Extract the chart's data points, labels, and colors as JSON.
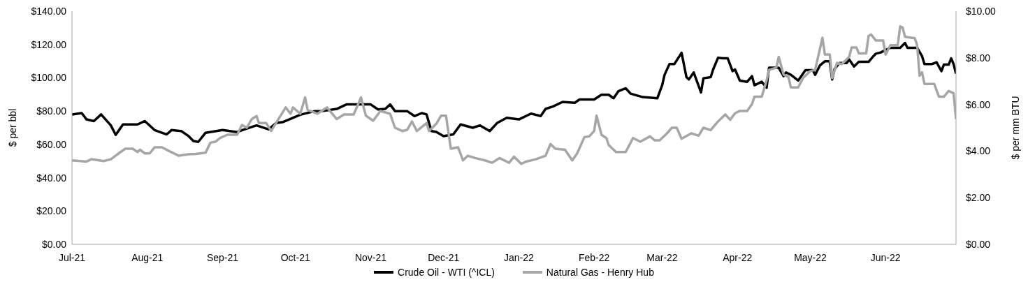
{
  "chart_data": {
    "type": "line",
    "ylabel": "$ per bbl",
    "y2label": "$ per mm BTU",
    "xlim": [
      "2021-07-01",
      "2022-06-30"
    ],
    "xticks": [
      {
        "value": "2021-07-01",
        "label": "Jul-21"
      },
      {
        "value": "2021-08-01",
        "label": "Aug-21"
      },
      {
        "value": "2021-09-01",
        "label": "Sep-21"
      },
      {
        "value": "2021-10-01",
        "label": "Oct-21"
      },
      {
        "value": "2021-11-01",
        "label": "Nov-21"
      },
      {
        "value": "2021-12-01",
        "label": "Dec-21"
      },
      {
        "value": "2022-01-01",
        "label": "Jan-22"
      },
      {
        "value": "2022-02-01",
        "label": "Feb-22"
      },
      {
        "value": "2022-03-01",
        "label": "Mar-22"
      },
      {
        "value": "2022-04-01",
        "label": "Apr-22"
      },
      {
        "value": "2022-05-01",
        "label": "May-22"
      },
      {
        "value": "2022-06-01",
        "label": "Jun-22"
      }
    ],
    "ylim": [
      0,
      140
    ],
    "yticks": [
      {
        "value": 0,
        "label": "$0.00"
      },
      {
        "value": 20,
        "label": "$20.00"
      },
      {
        "value": 40,
        "label": "$40.00"
      },
      {
        "value": 60,
        "label": "$60.00"
      },
      {
        "value": 80,
        "label": "$80.00"
      },
      {
        "value": 100,
        "label": "$100.00"
      },
      {
        "value": 120,
        "label": "$120.00"
      },
      {
        "value": 140,
        "label": "$140.00"
      }
    ],
    "y2lim": [
      0,
      10
    ],
    "y2ticks": [
      {
        "value": 0,
        "label": "$0.00"
      },
      {
        "value": 2,
        "label": "$2.00"
      },
      {
        "value": 4,
        "label": "$4.00"
      },
      {
        "value": 6,
        "label": "$6.00"
      },
      {
        "value": 8,
        "label": "$8.00"
      },
      {
        "value": 10,
        "label": "$10.00"
      }
    ],
    "grid": false,
    "legend": "bottom",
    "marker": "none",
    "line_style": "solid",
    "series": [
      {
        "name": "Crude Oil - WTI (^ICL)",
        "color": "#000000",
        "x": [
          "2021-07-01",
          "2021-07-05",
          "2021-07-07",
          "2021-07-10",
          "2021-07-13",
          "2021-07-17",
          "2021-07-19",
          "2021-07-22",
          "2021-07-28",
          "2021-07-31",
          "2021-08-04",
          "2021-08-09",
          "2021-08-11",
          "2021-08-15",
          "2021-08-18",
          "2021-08-20",
          "2021-08-22",
          "2021-08-25",
          "2021-09-01",
          "2021-09-07",
          "2021-09-10",
          "2021-09-15",
          "2021-09-20",
          "2021-09-23",
          "2021-09-26",
          "2021-10-03",
          "2021-10-09",
          "2021-10-12",
          "2021-10-18",
          "2021-10-22",
          "2021-11-01",
          "2021-11-04",
          "2021-11-07",
          "2021-11-09",
          "2021-11-11",
          "2021-11-16",
          "2021-11-19",
          "2021-11-22",
          "2021-11-24",
          "2021-11-26",
          "2021-11-28",
          "2021-12-01",
          "2021-12-05",
          "2021-12-08",
          "2021-12-13",
          "2021-12-16",
          "2021-12-20",
          "2021-12-23",
          "2021-12-27",
          "2022-01-01",
          "2022-01-06",
          "2022-01-10",
          "2022-01-12",
          "2022-01-15",
          "2022-01-19",
          "2022-01-24",
          "2022-01-26",
          "2022-02-01",
          "2022-02-04",
          "2022-02-07",
          "2022-02-09",
          "2022-02-11",
          "2022-02-14",
          "2022-02-16",
          "2022-02-21",
          "2022-02-27",
          "2022-03-01",
          "2022-03-02",
          "2022-03-04",
          "2022-03-06",
          "2022-03-09",
          "2022-03-11",
          "2022-03-12",
          "2022-03-14",
          "2022-03-17",
          "2022-03-18",
          "2022-03-21",
          "2022-03-22",
          "2022-03-24",
          "2022-03-26",
          "2022-03-28",
          "2022-03-30",
          "2022-03-31",
          "2022-04-02",
          "2022-04-05",
          "2022-04-07",
          "2022-04-08",
          "2022-04-11",
          "2022-04-13",
          "2022-04-14",
          "2022-04-18",
          "2022-04-20",
          "2022-04-21",
          "2022-04-23",
          "2022-04-26",
          "2022-04-27",
          "2022-04-29",
          "2022-05-02",
          "2022-05-03",
          "2022-05-05",
          "2022-05-07",
          "2022-05-09",
          "2022-05-10",
          "2022-05-11",
          "2022-05-13",
          "2022-05-16",
          "2022-05-17",
          "2022-05-19",
          "2022-05-21",
          "2022-05-25",
          "2022-05-27",
          "2022-05-28",
          "2022-05-30",
          "2022-06-01",
          "2022-06-03",
          "2022-06-07",
          "2022-06-09",
          "2022-06-10",
          "2022-06-14",
          "2022-06-16",
          "2022-06-17",
          "2022-06-20",
          "2022-06-22",
          "2022-06-24",
          "2022-06-25",
          "2022-06-27",
          "2022-06-28",
          "2022-06-29",
          "2022-06-30"
        ],
        "values": [
          78,
          78.8,
          75,
          74,
          78,
          71.4,
          65.7,
          72,
          72,
          74,
          68.6,
          66,
          68.6,
          68,
          65,
          62,
          61.5,
          67,
          68.6,
          67.4,
          69,
          71.4,
          69,
          72.8,
          73.5,
          77.8,
          80,
          80,
          81.3,
          84,
          84,
          81,
          81.3,
          84,
          80,
          80,
          77,
          78.8,
          78,
          68,
          67.5,
          65,
          66,
          72,
          70,
          71.4,
          68,
          72.8,
          76,
          75,
          78.5,
          77,
          81.3,
          82.7,
          85.5,
          85,
          87,
          87,
          89.8,
          89.8,
          87.7,
          92,
          93.7,
          90.5,
          88.4,
          87.7,
          95.5,
          101.8,
          108.2,
          108.2,
          115,
          100.4,
          99,
          103.2,
          91.2,
          99.7,
          100.4,
          105,
          112,
          111.7,
          111.7,
          104,
          105,
          98.3,
          97.6,
          101,
          95.5,
          97.6,
          94,
          106,
          106,
          101,
          103.2,
          101.8,
          98.3,
          100.4,
          104.6,
          104.6,
          101.8,
          107.5,
          109.9,
          109.9,
          99,
          105.3,
          108.9,
          108.9,
          111,
          106.8,
          109.6,
          109.6,
          113,
          114.5,
          115.2,
          116.7,
          118,
          118,
          120.9,
          118,
          118,
          113,
          108.2,
          108.2,
          109.3,
          104,
          107.9,
          107.9,
          111.7,
          108.2,
          102.5
        ]
      },
      {
        "name": "Natural Gas - Henry Hub",
        "color": "#a6a6a6",
        "axis": "y2",
        "x": [
          "2021-07-01",
          "2021-07-07",
          "2021-07-09",
          "2021-07-14",
          "2021-07-17",
          "2021-07-21",
          "2021-07-23",
          "2021-07-26",
          "2021-07-28",
          "2021-07-29",
          "2021-07-31",
          "2021-08-02",
          "2021-08-04",
          "2021-08-07",
          "2021-08-10",
          "2021-08-14",
          "2021-08-18",
          "2021-08-21",
          "2021-08-25",
          "2021-08-27",
          "2021-08-29",
          "2021-08-31",
          "2021-09-03",
          "2021-09-07",
          "2021-09-09",
          "2021-09-11",
          "2021-09-13",
          "2021-09-15",
          "2021-09-16",
          "2021-09-19",
          "2021-09-21",
          "2021-09-23",
          "2021-09-27",
          "2021-09-29",
          "2021-09-30",
          "2021-10-03",
          "2021-10-05",
          "2021-10-06",
          "2021-10-10",
          "2021-10-14",
          "2021-10-18",
          "2021-10-21",
          "2021-10-25",
          "2021-10-28",
          "2021-10-30",
          "2021-11-02",
          "2021-11-05",
          "2021-11-09",
          "2021-11-11",
          "2021-11-14",
          "2021-11-16",
          "2021-11-18",
          "2021-11-20",
          "2021-11-24",
          "2021-11-25",
          "2021-11-28",
          "2021-11-30",
          "2021-12-02",
          "2021-12-04",
          "2021-12-07",
          "2021-12-09",
          "2021-12-11",
          "2021-12-14",
          "2021-12-18",
          "2021-12-21",
          "2021-12-24",
          "2021-12-28",
          "2021-12-30",
          "2022-01-02",
          "2022-01-04",
          "2022-01-08",
          "2022-01-12",
          "2022-01-14",
          "2022-01-16",
          "2022-01-20",
          "2022-01-23",
          "2022-01-25",
          "2022-01-28",
          "2022-01-30",
          "2022-02-01",
          "2022-02-02",
          "2022-02-04",
          "2022-02-06",
          "2022-02-07",
          "2022-02-10",
          "2022-02-14",
          "2022-02-17",
          "2022-02-20",
          "2022-02-24",
          "2022-02-26",
          "2022-02-28",
          "2022-03-03",
          "2022-03-05",
          "2022-03-07",
          "2022-03-09",
          "2022-03-13",
          "2022-03-16",
          "2022-03-18",
          "2022-03-21",
          "2022-03-24",
          "2022-03-27",
          "2022-03-29",
          "2022-03-31",
          "2022-04-02",
          "2022-04-05",
          "2022-04-07",
          "2022-04-08",
          "2022-04-11",
          "2022-04-13",
          "2022-04-14",
          "2022-04-17",
          "2022-04-18",
          "2022-04-20",
          "2022-04-22",
          "2022-04-23",
          "2022-04-26",
          "2022-04-28",
          "2022-05-01",
          "2022-05-03",
          "2022-05-06",
          "2022-05-07",
          "2022-05-09",
          "2022-05-10",
          "2022-05-12",
          "2022-05-14",
          "2022-05-17",
          "2022-05-18",
          "2022-05-20",
          "2022-05-21",
          "2022-05-24",
          "2022-05-25",
          "2022-05-26",
          "2022-05-28",
          "2022-05-31",
          "2022-06-01",
          "2022-06-03",
          "2022-06-06",
          "2022-06-07",
          "2022-06-08",
          "2022-06-09",
          "2022-06-13",
          "2022-06-14",
          "2022-06-15",
          "2022-06-16",
          "2022-06-17",
          "2022-06-21",
          "2022-06-23",
          "2022-06-25",
          "2022-06-27",
          "2022-06-29",
          "2022-06-30"
        ],
        "values": [
          3.6,
          3.55,
          3.65,
          3.57,
          3.65,
          3.96,
          4.1,
          4.1,
          3.96,
          4.06,
          3.9,
          3.9,
          4.16,
          4.16,
          4.0,
          3.8,
          3.86,
          3.88,
          3.93,
          4.36,
          4.4,
          4.56,
          4.7,
          4.7,
          5.12,
          5.0,
          5.37,
          5.5,
          5.2,
          5.2,
          4.86,
          5.2,
          5.87,
          5.6,
          5.87,
          5.6,
          6.3,
          5.77,
          5.6,
          5.87,
          5.37,
          5.57,
          5.57,
          6.3,
          5.52,
          5.3,
          5.72,
          5.6,
          5.0,
          4.86,
          4.91,
          5.27,
          4.86,
          5.2,
          4.86,
          5.17,
          5.52,
          5.52,
          4.1,
          4.16,
          3.6,
          3.8,
          3.7,
          3.6,
          3.5,
          3.7,
          3.5,
          3.76,
          3.45,
          3.55,
          3.65,
          3.8,
          4.3,
          4.1,
          4.06,
          3.6,
          3.9,
          4.6,
          4.63,
          4.86,
          5.52,
          4.7,
          4.56,
          4.26,
          3.96,
          3.96,
          4.56,
          4.4,
          4.63,
          4.46,
          4.46,
          4.76,
          5.0,
          5.0,
          4.53,
          4.76,
          4.66,
          5.0,
          4.9,
          5.27,
          5.57,
          5.34,
          5.62,
          5.72,
          5.72,
          6.02,
          6.33,
          6.33,
          7.03,
          7.48,
          7.58,
          8.04,
          7.28,
          7.18,
          6.73,
          6.73,
          7.13,
          7.43,
          7.48,
          8.86,
          8.14,
          8.14,
          7.13,
          7.78,
          7.73,
          8.04,
          8.44,
          8.44,
          8.19,
          8.19,
          8.94,
          9.0,
          8.74,
          8.74,
          8.14,
          8.54,
          8.54,
          9.35,
          9.3,
          8.9,
          8.84,
          8.54,
          7.23,
          7.38,
          6.88,
          6.88,
          6.33,
          6.33,
          6.58,
          6.48,
          5.37
        ]
      }
    ]
  }
}
